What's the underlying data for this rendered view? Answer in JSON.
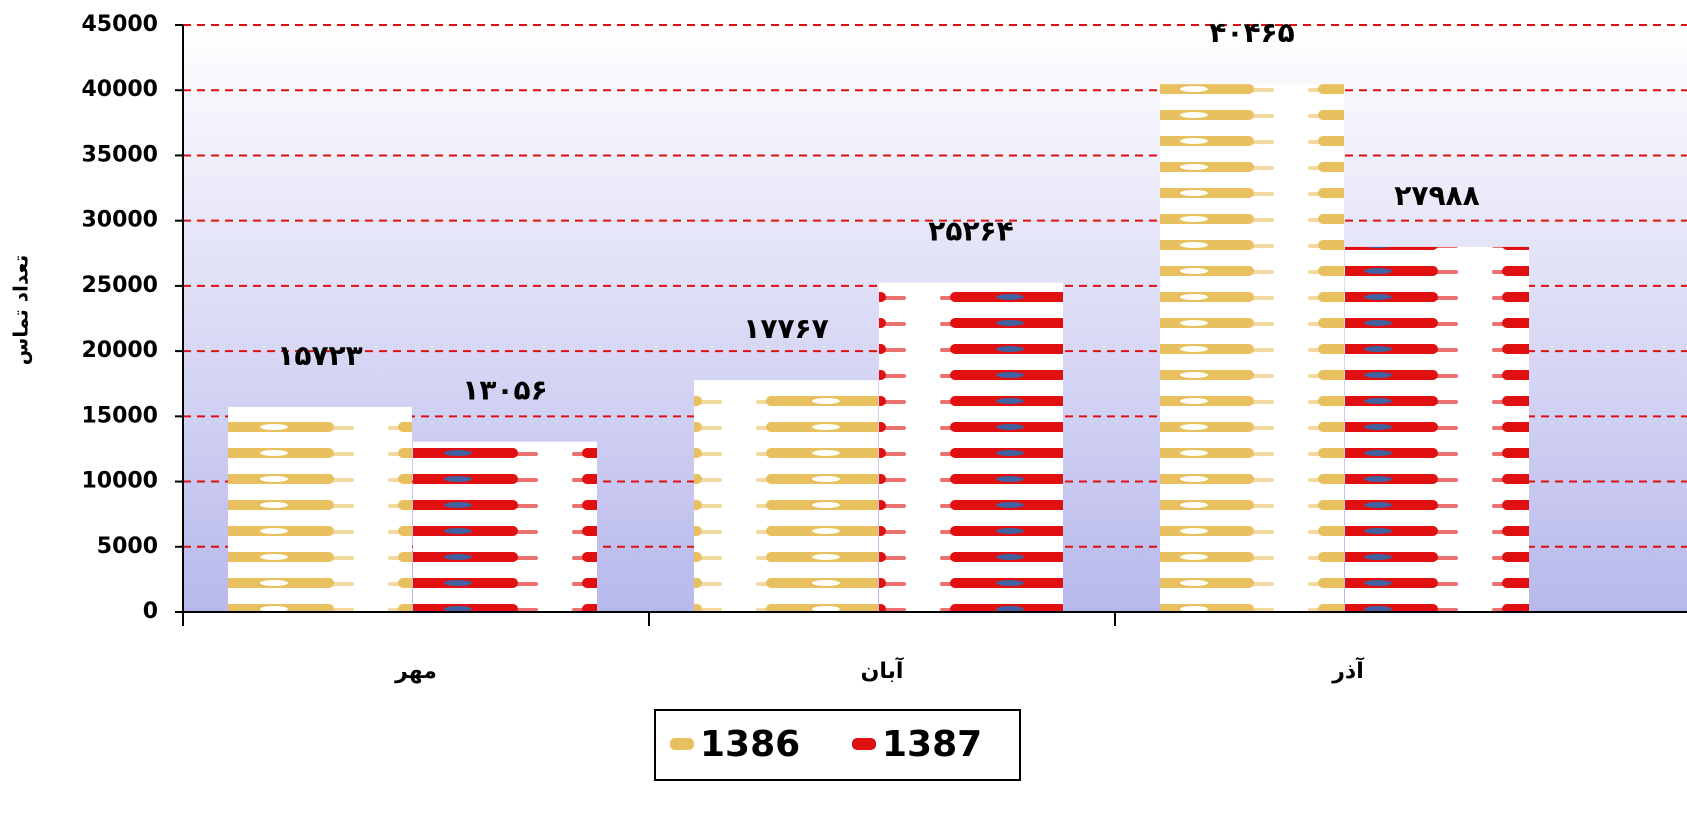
{
  "chart_data": {
    "type": "bar",
    "y_label": "تعداد تماس",
    "categories": [
      "مهر",
      "آبان",
      "آذر"
    ],
    "series": [
      {
        "name": "1386",
        "color": "#e8c060",
        "values": [
          15723,
          17767,
          40465
        ],
        "value_labels": [
          "۱۵۷۲۳",
          "۱۷۷۶۷",
          "۴۰۴۶۵"
        ]
      },
      {
        "name": "1387",
        "color": "#e01010",
        "values": [
          13056,
          25264,
          27988
        ],
        "value_labels": [
          "۱۳۰۵۶",
          "۲۵۲۶۴",
          "۲۷۹۸۸"
        ]
      }
    ],
    "ylim": [
      0,
      45000
    ],
    "yticks": [
      0,
      5000,
      10000,
      15000,
      20000,
      25000,
      30000,
      35000,
      40000,
      45000
    ],
    "grid": true,
    "grid_color": "#e01010",
    "legend": "bottom"
  }
}
